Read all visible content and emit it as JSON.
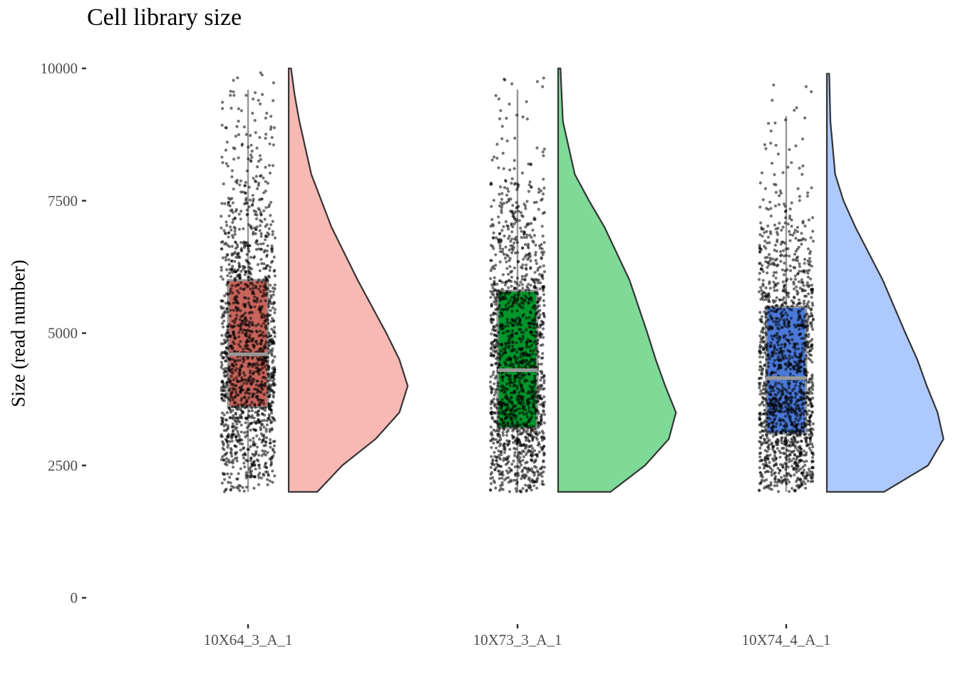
{
  "chart_data": {
    "type": "raincloud",
    "title": "Cell library size",
    "xlabel": "",
    "ylabel": "Size (read number)",
    "ylim": [
      0,
      10000
    ],
    "y_ticks": [
      0,
      2500,
      5000,
      7500,
      10000
    ],
    "grid": false,
    "legend": "none",
    "point_color": "#000000",
    "box_border_color": "#999999",
    "groups": [
      {
        "category": "10X64_3_A_1",
        "box_color": "#c8645c",
        "density_color": "#f8b9b4",
        "stats": {
          "min": 2000,
          "q1": 3600,
          "median": 4600,
          "q3": 6000,
          "whisker_high": 9600,
          "max": 10000
        },
        "density_y": [
          2000,
          2500,
          3000,
          3500,
          4000,
          4500,
          5000,
          6000,
          7000,
          8000,
          9000,
          9500,
          10000
        ],
        "density_w": [
          0.24,
          0.45,
          0.73,
          0.93,
          1.0,
          0.93,
          0.82,
          0.58,
          0.36,
          0.19,
          0.09,
          0.05,
          0.02
        ]
      },
      {
        "category": "10X73_3_A_1",
        "box_color": "#00962b",
        "density_color": "#7fd997",
        "stats": {
          "min": 2000,
          "q1": 3200,
          "median": 4300,
          "q3": 5800,
          "whisker_high": 9600,
          "max": 10000
        },
        "density_y": [
          2000,
          2500,
          3000,
          3500,
          4000,
          4500,
          5000,
          6000,
          7000,
          7500,
          8000,
          9000,
          10000
        ],
        "density_w": [
          0.44,
          0.73,
          0.93,
          0.99,
          0.9,
          0.82,
          0.75,
          0.6,
          0.39,
          0.26,
          0.14,
          0.04,
          0.02
        ]
      },
      {
        "category": "10X74_4_A_1",
        "box_color": "#4a79d8",
        "density_color": "#adc9fd",
        "stats": {
          "min": 2000,
          "q1": 3100,
          "median": 4150,
          "q3": 5500,
          "whisker_high": 9100,
          "max": 9900
        },
        "density_y": [
          2000,
          2500,
          3000,
          3500,
          4000,
          4500,
          5000,
          6000,
          7000,
          7500,
          8000,
          9000,
          9900
        ],
        "density_w": [
          0.48,
          0.85,
          0.98,
          0.93,
          0.84,
          0.76,
          0.66,
          0.47,
          0.24,
          0.14,
          0.07,
          0.03,
          0.02
        ]
      }
    ]
  }
}
